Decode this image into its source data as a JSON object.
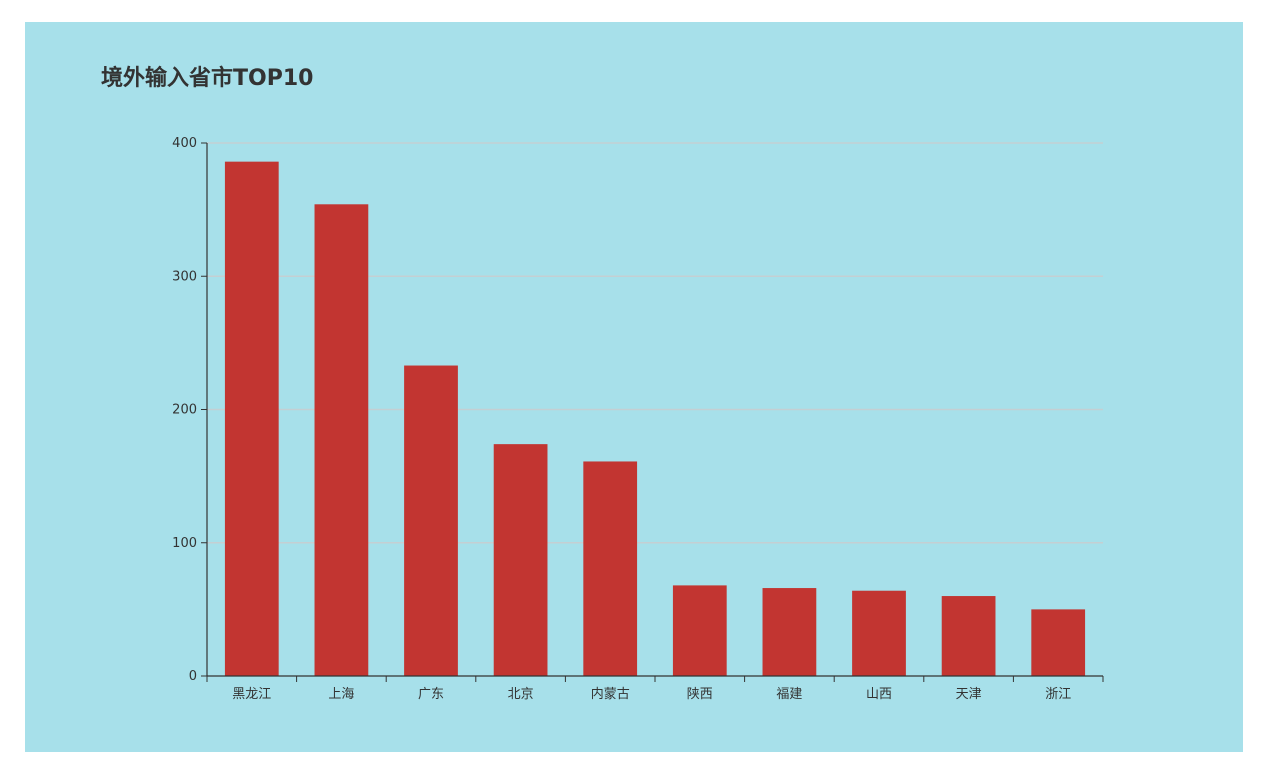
{
  "colors": {
    "panel_background": "#a7e0ea",
    "bar": "#c23531",
    "axis": "#333333",
    "grid": "#c4cfd3",
    "text": "#333333"
  },
  "chart_data": {
    "type": "bar",
    "title": "境外输入省市TOP10",
    "categories": [
      "黑龙江",
      "上海",
      "广东",
      "北京",
      "内蒙古",
      "陕西",
      "福建",
      "山西",
      "天津",
      "浙江"
    ],
    "values": [
      386,
      354,
      233,
      174,
      161,
      68,
      66,
      64,
      60,
      50
    ],
    "ylim": [
      0,
      400
    ],
    "yticks": [
      0,
      100,
      200,
      300,
      400
    ],
    "xlabel": "",
    "ylabel": "",
    "grid": true,
    "legend": "none"
  }
}
